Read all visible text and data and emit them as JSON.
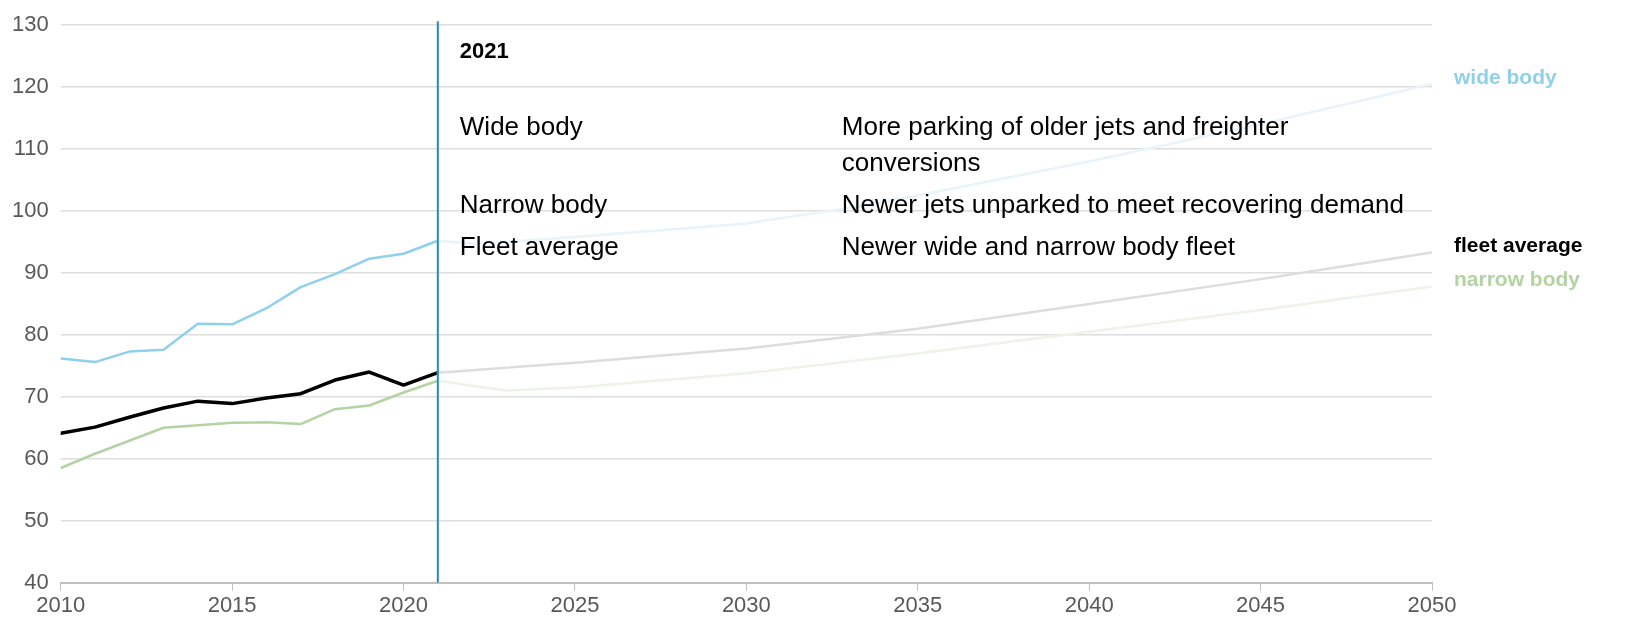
{
  "chart_data": {
    "type": "line",
    "xlim": [
      2010,
      2050
    ],
    "xticks": [
      2010,
      2015,
      2020,
      2025,
      2030,
      2035,
      2040,
      2045,
      2050
    ],
    "ylim": [
      40,
      130
    ],
    "yticks": [
      40,
      50,
      60,
      70,
      80,
      90,
      100,
      110,
      120,
      130
    ],
    "grid": "y",
    "legend": false,
    "marker": "none",
    "line_style": "solid",
    "series": [
      {
        "name": "wide body",
        "color": "#8fd0ea",
        "x": [
          2010,
          2011,
          2012,
          2013,
          2014,
          2015,
          2016,
          2017,
          2018,
          2019,
          2020,
          2021
        ],
        "values": [
          76.2,
          75.6,
          77.3,
          77.6,
          81.8,
          81.7,
          84.3,
          87.7,
          89.8,
          92.3,
          93.1,
          95.2
        ]
      },
      {
        "name": "fleet average",
        "color": "#000000",
        "x": [
          2010,
          2011,
          2012,
          2013,
          2014,
          2015,
          2016,
          2017,
          2018,
          2019,
          2020,
          2021
        ],
        "values": [
          64.1,
          65.1,
          66.7,
          68.2,
          69.3,
          68.9,
          69.8,
          70.5,
          72.7,
          74.0,
          71.9,
          73.9
        ]
      },
      {
        "name": "narrow body",
        "color": "#b3d3a3",
        "x": [
          2010,
          2011,
          2012,
          2013,
          2014,
          2015,
          2016,
          2017,
          2018,
          2019,
          2020,
          2021
        ],
        "values": [
          58.5,
          60.8,
          62.9,
          65.0,
          65.4,
          65.8,
          65.9,
          65.6,
          68.0,
          68.6,
          70.7,
          72.6
        ]
      },
      {
        "color": "#e8f4fa",
        "x": [
          2021,
          2022,
          2023,
          2025,
          2030,
          2033,
          2035,
          2040,
          2045,
          2050
        ],
        "values": [
          95.2,
          94.7,
          95.0,
          95.8,
          98.0,
          100.5,
          102.5,
          108.0,
          114.0,
          120.5
        ]
      },
      {
        "color": "#dddddd",
        "x": [
          2021,
          2022,
          2025,
          2030,
          2035,
          2040,
          2045,
          2050
        ],
        "values": [
          73.9,
          74.3,
          75.5,
          77.8,
          81.0,
          85.0,
          89.0,
          93.3
        ]
      },
      {
        "color": "#eef3ea",
        "x": [
          2021,
          2022,
          2023,
          2025,
          2030,
          2035,
          2040,
          2045,
          2050
        ],
        "values": [
          72.6,
          71.8,
          71.0,
          71.5,
          73.8,
          77.0,
          80.5,
          84.0,
          87.8
        ]
      }
    ],
    "ref_lines": [
      {
        "axis": "x",
        "value": 2021,
        "label": "2021",
        "color": "#1a8ccc"
      }
    ],
    "annotations": [
      "Wide body",
      "More parking of older jets and freighter conversions",
      "Narrow body",
      "Newer jets unparked to meet recovering demand",
      "Fleet average",
      "Newer wide and narrow body fleet"
    ]
  }
}
